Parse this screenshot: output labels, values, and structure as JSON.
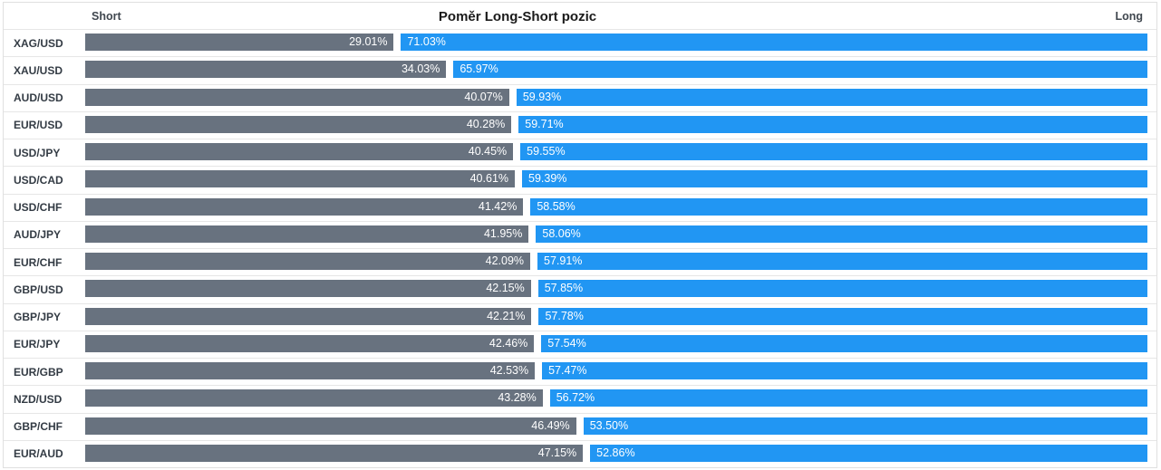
{
  "chart_title": "Poměr Long-Short pozic",
  "header": {
    "short_label": "Short",
    "long_label": "Long"
  },
  "colors": {
    "short_bar": "#68727f",
    "long_bar": "#2196f3",
    "separator": "#e6e6e6",
    "frame_border": "#e0e0e0",
    "bar_text": "#ffffff",
    "label_text": "#333b44"
  },
  "chart_data": {
    "type": "bar",
    "orientation": "horizontal-stacked",
    "title": "Poměr Long-Short pozic",
    "xlabel": "",
    "ylabel": "",
    "xlim": [
      0,
      100
    ],
    "grid": false,
    "legend_position": "none",
    "axis_end_labels": {
      "left": "Short",
      "right": "Long"
    },
    "categories": [
      "XAG/USD",
      "XAU/USD",
      "AUD/USD",
      "EUR/USD",
      "USD/JPY",
      "USD/CAD",
      "USD/CHF",
      "AUD/JPY",
      "EUR/CHF",
      "GBP/USD",
      "GBP/JPY",
      "EUR/JPY",
      "EUR/GBP",
      "NZD/USD",
      "GBP/CHF",
      "EUR/AUD"
    ],
    "series": [
      {
        "name": "Short",
        "values": [
          29.01,
          34.03,
          40.07,
          40.28,
          40.45,
          40.61,
          41.42,
          41.95,
          42.09,
          42.15,
          42.21,
          42.46,
          42.53,
          43.28,
          46.49,
          47.15
        ]
      },
      {
        "name": "Long",
        "values": [
          71.03,
          65.97,
          59.93,
          59.71,
          59.55,
          59.39,
          58.58,
          58.06,
          57.91,
          57.85,
          57.78,
          57.54,
          57.47,
          56.72,
          53.5,
          52.86
        ]
      }
    ],
    "value_labels": {
      "short": [
        "29.01%",
        "34.03%",
        "40.07%",
        "40.28%",
        "40.45%",
        "40.61%",
        "41.42%",
        "41.95%",
        "42.09%",
        "42.15%",
        "42.21%",
        "42.46%",
        "42.53%",
        "43.28%",
        "46.49%",
        "47.15%"
      ],
      "long": [
        "71.03%",
        "65.97%",
        "59.93%",
        "59.71%",
        "59.55%",
        "59.39%",
        "58.58%",
        "58.06%",
        "57.91%",
        "57.85%",
        "57.78%",
        "57.54%",
        "57.47%",
        "56.72%",
        "53.50%",
        "52.86%"
      ]
    }
  }
}
